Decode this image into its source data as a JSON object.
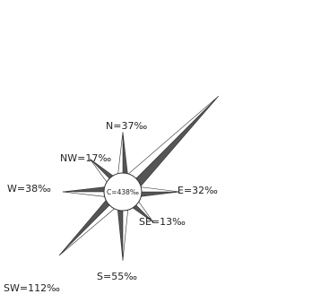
{
  "chart_data": {
    "type": "wind-rose",
    "unit": "‰",
    "center": {
      "label": "C=438‰",
      "value": 438
    },
    "directions": [
      {
        "dir": "N",
        "value": 37,
        "label": "N=37‰"
      },
      {
        "dir": "NE",
        "value": 300,
        "label": ""
      },
      {
        "dir": "E",
        "value": 32,
        "label": "E=32‰"
      },
      {
        "dir": "SE",
        "value": 13,
        "label": "SE=13‰"
      },
      {
        "dir": "S",
        "value": 55,
        "label": "S=55‰"
      },
      {
        "dir": "SW",
        "value": 112,
        "label": "SW=112‰"
      },
      {
        "dir": "W",
        "value": 38,
        "label": "W=38‰"
      },
      {
        "dir": "NW",
        "value": 17,
        "label": "NW=17‰"
      }
    ],
    "colors": {
      "dark": "#555555",
      "light": "#ffffff",
      "outline": "#333333"
    }
  }
}
